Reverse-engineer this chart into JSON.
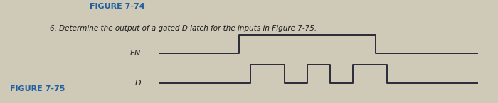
{
  "title_line1": "FIGURE 7-74",
  "title_line2": "6. Determine the output of a gated D latch for the inputs in Figure 7-75.",
  "figure_label": "FIGURE 7-75",
  "background_color": "#cfc9b8",
  "text_color": "#1a1a1a",
  "title_color": "#2060a0",
  "waveform_color": "#2a2a3a",
  "en_label": "EN",
  "d_label": "D",
  "en_x": [
    0,
    3.5,
    3.5,
    9.5,
    9.5,
    14
  ],
  "en_y": [
    0,
    0,
    1,
    1,
    0,
    0
  ],
  "d_x": [
    0,
    4,
    4,
    5.5,
    5.5,
    6.5,
    6.5,
    7.5,
    7.5,
    8.5,
    8.5,
    10,
    10,
    11,
    11,
    14
  ],
  "d_y": [
    0,
    0,
    1,
    1,
    0,
    0,
    1,
    1,
    0,
    0,
    1,
    1,
    0,
    0,
    0,
    0
  ]
}
